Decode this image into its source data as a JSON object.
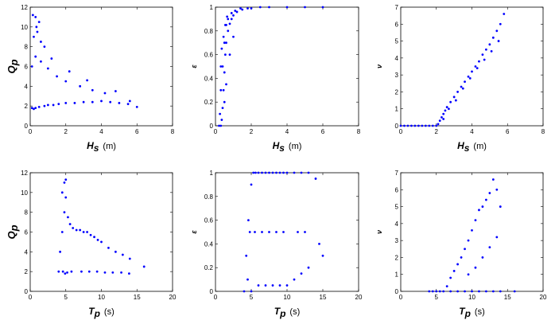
{
  "chart_data": [
    {
      "type": "scatter",
      "id": "hs-qp",
      "xlabel_main": "H",
      "xlabel_sub": "s",
      "xlabel_unit": "(m)",
      "ylabel_main": "Q",
      "ylabel_sub": "p",
      "xlim": [
        0,
        8
      ],
      "ylim": [
        0,
        12
      ],
      "xticks": [
        0,
        2,
        4,
        6,
        8
      ],
      "yticks": [
        0,
        2,
        4,
        6,
        8,
        10,
        12
      ],
      "color": "#0000ff",
      "series": [
        {
          "x": [
            0.1,
            0.2,
            0.3,
            0.5,
            0.8,
            1.0,
            1.3,
            1.6,
            2.0,
            2.5,
            3.0,
            3.5,
            4.0,
            4.5,
            5.0,
            5.5,
            6.0,
            0.1,
            0.3,
            0.6,
            1.0,
            1.5,
            2.0,
            2.8,
            3.5,
            4.2,
            0.2,
            0.4,
            0.8,
            0.3,
            0.5,
            0.15,
            0.35,
            0.6,
            1.2,
            2.2,
            3.2,
            4.8,
            5.6
          ],
          "y": [
            1.8,
            1.7,
            1.8,
            1.9,
            2.0,
            2.1,
            2.1,
            2.2,
            2.3,
            2.3,
            2.4,
            2.4,
            2.5,
            2.4,
            2.3,
            2.2,
            1.9,
            6.0,
            7.0,
            6.5,
            5.8,
            5.0,
            4.5,
            4.0,
            3.6,
            3.3,
            9.0,
            9.5,
            8.0,
            11.0,
            10.5,
            11.2,
            10.0,
            8.5,
            6.8,
            5.5,
            4.6,
            3.5,
            2.5
          ]
        }
      ]
    },
    {
      "type": "scatter",
      "id": "hs-eps",
      "xlabel_main": "H",
      "xlabel_sub": "s",
      "xlabel_unit": "(m)",
      "ylabel_main": "ε",
      "ylabel_sub": "",
      "xlim": [
        0,
        8
      ],
      "ylim": [
        0,
        1
      ],
      "xticks": [
        0,
        2,
        4,
        6,
        8
      ],
      "yticks": [
        0,
        0.2,
        0.4,
        0.6,
        0.8,
        1
      ],
      "color": "#0000ff",
      "series": [
        {
          "x": [
            0.2,
            0.3,
            0.35,
            0.4,
            0.45,
            0.5,
            0.55,
            0.6,
            0.7,
            0.8,
            0.9,
            1.0,
            1.2,
            1.5,
            2.0,
            2.5,
            3.0,
            4.0,
            5.0,
            6.0,
            0.25,
            0.3,
            0.4,
            0.5,
            0.6,
            0.7,
            0.9,
            1.1,
            1.4,
            1.8,
            0.3,
            0.35,
            0.45,
            0.55,
            0.65,
            0.5,
            0.6,
            0.8,
            1.0
          ],
          "y": [
            0.0,
            0.0,
            0.05,
            0.15,
            0.3,
            0.45,
            0.6,
            0.7,
            0.8,
            0.86,
            0.9,
            0.93,
            0.96,
            0.98,
            0.99,
            1.0,
            1.0,
            1.0,
            1.0,
            1.0,
            0.1,
            0.3,
            0.5,
            0.7,
            0.85,
            0.9,
            0.95,
            0.97,
            0.99,
            0.99,
            0.5,
            0.65,
            0.75,
            0.85,
            0.92,
            0.2,
            0.35,
            0.6,
            0.75
          ]
        }
      ]
    },
    {
      "type": "scatter",
      "id": "hs-nu",
      "xlabel_main": "H",
      "xlabel_sub": "s",
      "xlabel_unit": "(m)",
      "ylabel_main": "ν",
      "ylabel_sub": "",
      "xlim": [
        0,
        8
      ],
      "ylim": [
        0,
        7
      ],
      "xticks": [
        0,
        2,
        4,
        6,
        8
      ],
      "yticks": [
        0,
        1,
        2,
        3,
        4,
        5,
        6,
        7
      ],
      "color": "#0000ff",
      "series": [
        {
          "x": [
            0.0,
            0.2,
            0.4,
            0.6,
            0.8,
            1.0,
            1.2,
            1.4,
            1.6,
            1.8,
            2.0,
            2.1,
            2.2,
            2.3,
            2.4,
            2.5,
            2.6,
            2.8,
            3.0,
            3.2,
            3.4,
            3.6,
            3.8,
            4.0,
            4.2,
            4.4,
            4.6,
            4.8,
            5.0,
            5.2,
            5.4,
            5.6,
            5.8,
            2.4,
            2.7,
            3.1,
            3.5,
            3.9,
            4.3,
            4.7,
            5.1,
            5.5
          ],
          "y": [
            0,
            0,
            0,
            0,
            0,
            0,
            0,
            0,
            0,
            0,
            0.0,
            0.1,
            0.3,
            0.5,
            0.7,
            0.9,
            1.1,
            1.4,
            1.7,
            2.0,
            2.3,
            2.6,
            2.9,
            3.2,
            3.5,
            3.8,
            4.2,
            4.5,
            4.8,
            5.2,
            5.6,
            6.0,
            6.6,
            0.4,
            1.0,
            1.5,
            2.2,
            2.8,
            3.4,
            3.9,
            4.4,
            5.0
          ]
        }
      ]
    },
    {
      "type": "scatter",
      "id": "tp-qp",
      "xlabel_main": "T",
      "xlabel_sub": "p",
      "xlabel_unit": "(s)",
      "ylabel_main": "Q",
      "ylabel_sub": "p",
      "xlim": [
        0,
        20
      ],
      "ylim": [
        0,
        12
      ],
      "xticks": [
        0,
        5,
        10,
        15,
        20
      ],
      "yticks": [
        0,
        2,
        4,
        6,
        8,
        10,
        12
      ],
      "color": "#0000ff",
      "series": [
        {
          "x": [
            4.0,
            4.2,
            4.5,
            4.8,
            5.0,
            5.3,
            5.6,
            6.0,
            6.5,
            7.0,
            7.5,
            8.0,
            8.5,
            9.0,
            9.5,
            10.0,
            11.0,
            12.0,
            13.0,
            14.0,
            16.0,
            4.5,
            4.8,
            5.0,
            4.6,
            4.9,
            5.2,
            5.8,
            7.2,
            8.3,
            9.4,
            10.5,
            11.6,
            12.8,
            13.9
          ],
          "y": [
            2.0,
            4.0,
            6.0,
            8.0,
            9.5,
            7.5,
            6.8,
            6.4,
            6.2,
            6.2,
            6.0,
            6.0,
            5.7,
            5.5,
            5.2,
            5.0,
            4.4,
            4.0,
            3.7,
            3.3,
            2.5,
            10.0,
            11.0,
            11.3,
            2.0,
            1.8,
            1.9,
            2.0,
            2.0,
            2.0,
            2.0,
            1.9,
            1.9,
            1.9,
            1.8
          ]
        }
      ]
    },
    {
      "type": "scatter",
      "id": "tp-eps",
      "xlabel_main": "T",
      "xlabel_sub": "p",
      "xlabel_unit": "(s)",
      "ylabel_main": "ε",
      "ylabel_sub": "",
      "xlim": [
        0,
        20
      ],
      "ylim": [
        0,
        1
      ],
      "xticks": [
        0,
        5,
        10,
        15,
        20
      ],
      "yticks": [
        0,
        0.2,
        0.4,
        0.6,
        0.8,
        1
      ],
      "color": "#0000ff",
      "series": [
        {
          "x": [
            4.0,
            4.3,
            4.6,
            5.0,
            5.3,
            5.6,
            6.0,
            6.5,
            7.0,
            7.5,
            8.0,
            8.5,
            9.0,
            9.5,
            10.0,
            11.0,
            12.0,
            13.0,
            14.0,
            15.0,
            4.5,
            5.0,
            6.0,
            7.0,
            8.0,
            9.0,
            10.0,
            11.0,
            12.0,
            13.0,
            14.5,
            4.8,
            5.5,
            6.5,
            7.5,
            8.5,
            9.5,
            11.5,
            12.5
          ],
          "y": [
            0.0,
            0.3,
            0.6,
            0.9,
            1.0,
            1.0,
            1.0,
            1.0,
            1.0,
            1.0,
            1.0,
            1.0,
            1.0,
            1.0,
            1.0,
            1.0,
            1.0,
            1.0,
            0.95,
            0.3,
            0.1,
            0.0,
            0.05,
            0.05,
            0.05,
            0.05,
            0.05,
            0.1,
            0.15,
            0.2,
            0.4,
            0.5,
            0.5,
            0.5,
            0.5,
            0.5,
            0.5,
            0.5,
            0.5
          ]
        }
      ]
    },
    {
      "type": "scatter",
      "id": "tp-nu",
      "xlabel_main": "T",
      "xlabel_sub": "p",
      "xlabel_unit": "(s)",
      "ylabel_main": "ν",
      "ylabel_sub": "",
      "xlim": [
        0,
        20
      ],
      "ylim": [
        0,
        7
      ],
      "xticks": [
        0,
        5,
        10,
        15,
        20
      ],
      "yticks": [
        0,
        1,
        2,
        3,
        4,
        5,
        6,
        7
      ],
      "color": "#0000ff",
      "series": [
        {
          "x": [
            4.0,
            4.5,
            5.0,
            5.5,
            6.0,
            6.5,
            7.0,
            7.5,
            8.0,
            8.5,
            9.0,
            9.5,
            10.0,
            10.5,
            11.0,
            11.5,
            12.0,
            12.5,
            13.0,
            13.5,
            14.0,
            16.0,
            7.0,
            8.0,
            9.0,
            10.0,
            11.0,
            12.0,
            13.0,
            14.0,
            9.5,
            10.5,
            11.5,
            12.5,
            13.5
          ],
          "y": [
            0.0,
            0.0,
            0.0,
            0.0,
            0.0,
            0.3,
            0.8,
            1.2,
            1.6,
            2.0,
            2.5,
            3.0,
            3.6,
            4.2,
            4.8,
            5.0,
            5.4,
            5.8,
            6.6,
            6.0,
            5.0,
            0.0,
            0.0,
            0.0,
            0.0,
            0.0,
            0.0,
            0.0,
            0.0,
            0.0,
            1.0,
            1.4,
            2.0,
            2.6,
            3.2
          ]
        }
      ]
    }
  ]
}
